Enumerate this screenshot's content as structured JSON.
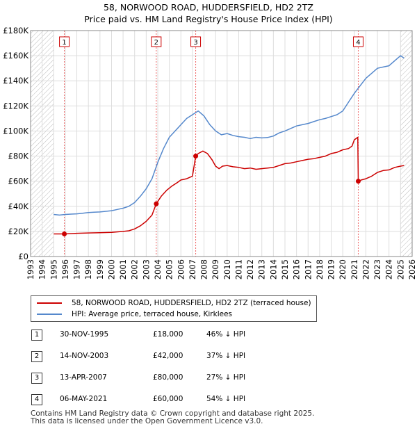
{
  "title": {
    "line1": "58, NORWOOD ROAD, HUDDERSFIELD, HD2 2TZ",
    "line2": "Price paid vs. HM Land Registry's House Price Index (HPI)"
  },
  "colors": {
    "price_line": "#cc0000",
    "hpi_line": "#5588cc",
    "grid": "#dddddd",
    "marker_line": "#ee6666",
    "hatch": "#bbbbbb"
  },
  "legend": {
    "price_label": "58, NORWOOD ROAD, HUDDERSFIELD, HD2 2TZ (terraced house)",
    "hpi_label": "HPI: Average price, terraced house, Kirklees"
  },
  "transactions": [
    {
      "num": "1",
      "date": "30-NOV-1995",
      "price": "£18,000",
      "hpi": "46% ↓ HPI"
    },
    {
      "num": "2",
      "date": "14-NOV-2003",
      "price": "£42,000",
      "hpi": "37% ↓ HPI"
    },
    {
      "num": "3",
      "date": "13-APR-2007",
      "price": "£80,000",
      "hpi": "27% ↓ HPI"
    },
    {
      "num": "4",
      "date": "06-MAY-2021",
      "price": "£60,000",
      "hpi": "54% ↓ HPI"
    }
  ],
  "footer": {
    "line1": "Contains HM Land Registry data © Crown copyright and database right 2025.",
    "line2": "This data is licensed under the Open Government Licence v3.0."
  },
  "chart_data": {
    "type": "line",
    "xlim": [
      1993,
      2026
    ],
    "ylim": [
      0,
      180000
    ],
    "x_ticks": [
      1993,
      1994,
      1995,
      1996,
      1997,
      1998,
      1999,
      2000,
      2001,
      2002,
      2003,
      2004,
      2005,
      2006,
      2007,
      2008,
      2009,
      2010,
      2011,
      2012,
      2013,
      2014,
      2015,
      2016,
      2017,
      2018,
      2019,
      2020,
      2021,
      2022,
      2023,
      2024,
      2025,
      2026
    ],
    "y_ticks": [
      0,
      20000,
      40000,
      60000,
      80000,
      100000,
      120000,
      140000,
      160000,
      180000
    ],
    "y_tick_labels": [
      "£0",
      "£20K",
      "£40K",
      "£60K",
      "£80K",
      "£100K",
      "£120K",
      "£140K",
      "£160K",
      "£180K"
    ],
    "hatched_before": 1995.0,
    "hatched_after": 2025.0,
    "sale_markers": [
      {
        "label": "1",
        "x": 1995.92,
        "y": 18000
      },
      {
        "label": "2",
        "x": 2003.87,
        "y": 42000
      },
      {
        "label": "3",
        "x": 2007.28,
        "y": 80000
      },
      {
        "label": "4",
        "x": 2021.34,
        "y": 60000
      }
    ],
    "series": [
      {
        "name": "58, NORWOOD ROAD, HUDDERSFIELD, HD2 2TZ (terraced house)",
        "x": [
          1995.0,
          1995.92,
          1996.5,
          1997,
          1998,
          1999,
          2000,
          2001,
          2001.5,
          2002,
          2002.5,
          2003,
          2003.5,
          2003.87,
          2004.3,
          2004.8,
          2005.2,
          2005.7,
          2006,
          2006.5,
          2007.0,
          2007.28,
          2007.5,
          2007.9,
          2008.3,
          2008.7,
          2009.0,
          2009.3,
          2009.6,
          2010.0,
          2010.5,
          2011,
          2011.5,
          2012,
          2012.5,
          2013,
          2013.5,
          2014,
          2014.5,
          2015,
          2015.5,
          2016,
          2016.5,
          2017,
          2017.5,
          2018,
          2018.5,
          2019,
          2019.5,
          2020,
          2020.5,
          2020.8,
          2021.0,
          2021.3,
          2021.34,
          2021.6,
          2022.0,
          2022.5,
          2023.0,
          2023.5,
          2024.0,
          2024.5,
          2025.0,
          2025.3
        ],
        "y": [
          18000,
          18000,
          18200,
          18500,
          18800,
          19000,
          19300,
          20000,
          20500,
          22000,
          24500,
          28000,
          33000,
          42000,
          48000,
          53000,
          56000,
          59000,
          61000,
          62000,
          64000,
          80000,
          82000,
          84000,
          82000,
          77000,
          72000,
          70000,
          72000,
          72500,
          71500,
          71000,
          70000,
          70500,
          69500,
          70000,
          70500,
          71000,
          72500,
          74000,
          74500,
          75500,
          76500,
          77500,
          78000,
          79000,
          80000,
          82000,
          83000,
          85000,
          86000,
          88000,
          93000,
          95000,
          60000,
          61000,
          62000,
          64000,
          67000,
          68500,
          69000,
          71000,
          72000,
          72500
        ]
      },
      {
        "name": "HPI: Average price, terraced house, Kirklees",
        "x": [
          1995.0,
          1995.5,
          1996,
          1996.5,
          1997,
          1997.5,
          1998,
          1998.5,
          1999,
          1999.5,
          2000,
          2000.5,
          2001,
          2001.5,
          2002,
          2002.5,
          2003,
          2003.5,
          2004,
          2004.5,
          2005,
          2005.5,
          2006,
          2006.5,
          2007,
          2007.5,
          2008,
          2008.5,
          2009,
          2009.5,
          2010,
          2010.5,
          2011,
          2011.5,
          2012,
          2012.5,
          2013,
          2013.5,
          2014,
          2014.5,
          2015,
          2015.5,
          2016,
          2016.5,
          2017,
          2017.5,
          2018,
          2018.5,
          2019,
          2019.5,
          2020,
          2020.5,
          2021,
          2021.5,
          2022,
          2022.5,
          2023,
          2023.5,
          2024,
          2024.5,
          2025,
          2025.3
        ],
        "y": [
          33500,
          33000,
          33500,
          33800,
          34000,
          34500,
          35000,
          35300,
          35500,
          36000,
          36500,
          37500,
          38500,
          40000,
          43000,
          48000,
          54000,
          62000,
          75000,
          86000,
          95000,
          100000,
          105000,
          110000,
          113000,
          116000,
          112000,
          105000,
          100000,
          97000,
          98000,
          96500,
          95500,
          95000,
          94000,
          95000,
          94500,
          94800,
          96000,
          98500,
          100000,
          102000,
          104000,
          105000,
          106000,
          107500,
          109000,
          110000,
          111500,
          113000,
          116000,
          123000,
          130000,
          136000,
          142000,
          146000,
          150000,
          151000,
          152000,
          156000,
          160000,
          158000
        ]
      }
    ]
  }
}
